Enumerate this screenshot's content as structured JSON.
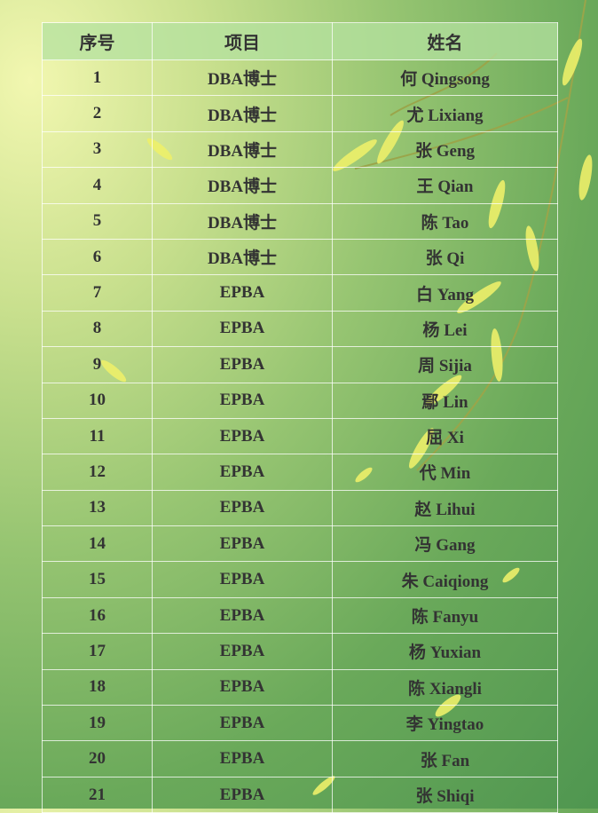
{
  "headers": [
    "序号",
    "项目",
    "姓名"
  ],
  "rows": [
    {
      "no": "1",
      "program": "DBA博士",
      "surname": "何",
      "given": "Qingsong"
    },
    {
      "no": "2",
      "program": "DBA博士",
      "surname": "尤",
      "given": "Lixiang"
    },
    {
      "no": "3",
      "program": "DBA博士",
      "surname": "张",
      "given": "Geng"
    },
    {
      "no": "4",
      "program": "DBA博士",
      "surname": "王",
      "given": "Qian"
    },
    {
      "no": "5",
      "program": "DBA博士",
      "surname": "陈",
      "given": "Tao"
    },
    {
      "no": "6",
      "program": "DBA博士",
      "surname": "张",
      "given": "Qi"
    },
    {
      "no": "7",
      "program": "EPBA",
      "surname": "白",
      "given": "Yang"
    },
    {
      "no": "8",
      "program": "EPBA",
      "surname": "杨",
      "given": "Lei"
    },
    {
      "no": "9",
      "program": "EPBA",
      "surname": "周",
      "given": "Sijia"
    },
    {
      "no": "10",
      "program": "EPBA",
      "surname": "鄢",
      "given": "Lin"
    },
    {
      "no": "11",
      "program": "EPBA",
      "surname": "屈",
      "given": "Xi"
    },
    {
      "no": "12",
      "program": "EPBA",
      "surname": "代",
      "given": "Min"
    },
    {
      "no": "13",
      "program": "EPBA",
      "surname": "赵",
      "given": "Lihui"
    },
    {
      "no": "14",
      "program": "EPBA",
      "surname": "冯",
      "given": "Gang"
    },
    {
      "no": "15",
      "program": "EPBA",
      "surname": "朱",
      "given": "Caiqiong"
    },
    {
      "no": "16",
      "program": "EPBA",
      "surname": "陈",
      "given": "Fanyu"
    },
    {
      "no": "17",
      "program": "EPBA",
      "surname": "杨",
      "given": "Yuxian"
    },
    {
      "no": "18",
      "program": "EPBA",
      "surname": "陈",
      "given": "Xiangli"
    },
    {
      "no": "19",
      "program": "EPBA",
      "surname": "李",
      "given": "Yingtao"
    },
    {
      "no": "20",
      "program": "EPBA",
      "surname": "张",
      "given": "Fan"
    },
    {
      "no": "21",
      "program": "EPBA",
      "surname": "张",
      "given": "Shiqi"
    }
  ],
  "colors": {
    "text": "#333333",
    "header_bg": "#b4e1a0",
    "leaf": "#e8ec5a",
    "branch": "#8a9a3a"
  }
}
